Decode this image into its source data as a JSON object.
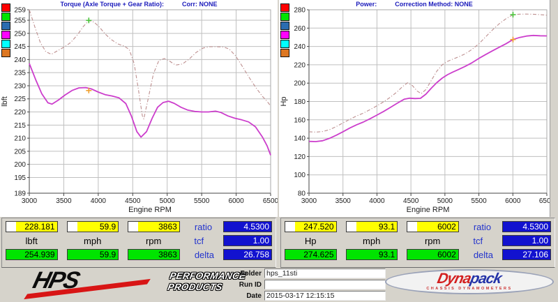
{
  "colors": {
    "window_bg": "#d6d3cb",
    "panel_bg": "#ffffff",
    "header_text": "#1a1abb",
    "cell_yellow": "#ffff00",
    "cell_green": "#00e400",
    "cell_blue": "#1212cf",
    "side_label_blue": "#2233cc",
    "solid_curve": "#cc3ecc",
    "dashed_curve": "#bd8f8f",
    "marker_green": "#4cc43c",
    "marker_orange": "#f0a030",
    "hps_red": "#d81515",
    "dynapack_red": "#d32020",
    "dynapack_blue": "#2433a8"
  },
  "chart_data": [
    {
      "type": "line",
      "title": "Torque (Axle Torque + Gear Ratio):",
      "corr_label": "Corr: NONE",
      "xlabel": "Engine RPM",
      "ylabel": "lbft",
      "xlim": [
        3000,
        6500
      ],
      "ylim": [
        189,
        259
      ],
      "x_ticks": [
        3000,
        3500,
        4000,
        4500,
        5000,
        5500,
        6000,
        6500
      ],
      "y_ticks": [
        259,
        255,
        250,
        245,
        240,
        235,
        230,
        225,
        220,
        215,
        210,
        205,
        200,
        195,
        189
      ],
      "grid": true,
      "legend_position": "top-left-outside",
      "legend_colors": [
        "#ff0000",
        "#00e400",
        "#2b6cb0",
        "#ff00ff",
        "#00ffff",
        "#dd7722"
      ],
      "series": [
        {
          "name": "torque-current-run",
          "color": "#cc3ecc",
          "line_style": "solid",
          "points": [
            [
              3000,
              238.5
            ],
            [
              3090,
              232.5
            ],
            [
              3180,
              227
            ],
            [
              3270,
              223.5
            ],
            [
              3330,
              223
            ],
            [
              3420,
              224.5
            ],
            [
              3520,
              226.5
            ],
            [
              3620,
              228.2
            ],
            [
              3720,
              229.2
            ],
            [
              3820,
              229.3
            ],
            [
              3900,
              228.8
            ],
            [
              4000,
              227.6
            ],
            [
              4100,
              226.6
            ],
            [
              4200,
              226.1
            ],
            [
              4300,
              225.4
            ],
            [
              4400,
              223.2
            ],
            [
              4480,
              218.5
            ],
            [
              4560,
              212.5
            ],
            [
              4620,
              210.4
            ],
            [
              4700,
              212.5
            ],
            [
              4780,
              217.5
            ],
            [
              4860,
              221.8
            ],
            [
              4940,
              223.6
            ],
            [
              5020,
              224.1
            ],
            [
              5100,
              223.3
            ],
            [
              5200,
              221.8
            ],
            [
              5300,
              220.7
            ],
            [
              5400,
              220.2
            ],
            [
              5500,
              220
            ],
            [
              5600,
              220
            ],
            [
              5700,
              220.3
            ],
            [
              5780,
              219.8
            ],
            [
              5880,
              218.5
            ],
            [
              5980,
              217.6
            ],
            [
              6080,
              217
            ],
            [
              6180,
              216.2
            ],
            [
              6280,
              214.3
            ],
            [
              6380,
              210.5
            ],
            [
              6450,
              207
            ],
            [
              6500,
              203.5
            ]
          ]
        },
        {
          "name": "torque-reference-run",
          "color": "#bd8f8f",
          "line_style": "dashdot",
          "points": [
            [
              3000,
              259
            ],
            [
              3080,
              252.5
            ],
            [
              3160,
              246.5
            ],
            [
              3240,
              243
            ],
            [
              3320,
              242
            ],
            [
              3420,
              243.5
            ],
            [
              3520,
              245
            ],
            [
              3600,
              246.5
            ],
            [
              3700,
              249.5
            ],
            [
              3780,
              252.5
            ],
            [
              3863,
              254.9
            ],
            [
              3940,
              254.3
            ],
            [
              4020,
              252.3
            ],
            [
              4100,
              249.8
            ],
            [
              4180,
              247.8
            ],
            [
              4280,
              246
            ],
            [
              4380,
              245.1
            ],
            [
              4450,
              243.8
            ],
            [
              4520,
              238.5
            ],
            [
              4580,
              229
            ],
            [
              4640,
              218.5
            ],
            [
              4660,
              217.3
            ],
            [
              4720,
              224.5
            ],
            [
              4800,
              234.5
            ],
            [
              4880,
              239.7
            ],
            [
              4960,
              240.4
            ],
            [
              5040,
              239.3
            ],
            [
              5120,
              237.9
            ],
            [
              5220,
              238.3
            ],
            [
              5320,
              240.2
            ],
            [
              5420,
              242.7
            ],
            [
              5520,
              244.4
            ],
            [
              5620,
              244.9
            ],
            [
              5720,
              244.9
            ],
            [
              5820,
              244.8
            ],
            [
              5900,
              244
            ],
            [
              5990,
              241.5
            ],
            [
              6080,
              237.8
            ],
            [
              6180,
              233.5
            ],
            [
              6280,
              229.5
            ],
            [
              6380,
              226
            ],
            [
              6450,
              224
            ],
            [
              6500,
              222.3
            ]
          ]
        }
      ],
      "cursor_markers": [
        {
          "x": 3863,
          "y": 228.181,
          "color": "#f0a030",
          "series": "torque-current-run"
        },
        {
          "x": 3863,
          "y": 254.939,
          "color": "#4cc43c",
          "series": "torque-reference-run"
        }
      ]
    },
    {
      "type": "line",
      "title": "Power:",
      "corr_label": "Correction Method: NONE",
      "xlabel": "Engine RPM",
      "ylabel": "Hp",
      "xlim": [
        3000,
        6500
      ],
      "ylim": [
        80,
        280
      ],
      "x_ticks": [
        3000,
        3500,
        4000,
        4500,
        5000,
        5500,
        6000,
        6500
      ],
      "y_ticks": [
        280,
        260,
        240,
        220,
        200,
        180,
        160,
        140,
        120,
        100,
        80
      ],
      "grid": true,
      "legend_position": "top-left-outside",
      "legend_colors": [
        "#ff0000",
        "#00e400",
        "#2b6cb0",
        "#ff00ff",
        "#00ffff",
        "#dd7722"
      ],
      "series": [
        {
          "name": "power-current-run",
          "color": "#cc3ecc",
          "line_style": "solid",
          "points": [
            [
              3000,
              136.5
            ],
            [
              3100,
              136.3
            ],
            [
              3200,
              137.2
            ],
            [
              3300,
              139.8
            ],
            [
              3400,
              143.2
            ],
            [
              3500,
              147
            ],
            [
              3600,
              151
            ],
            [
              3700,
              154.6
            ],
            [
              3800,
              157.6
            ],
            [
              3900,
              161.2
            ],
            [
              4000,
              165.2
            ],
            [
              4100,
              169.2
            ],
            [
              4200,
              173.6
            ],
            [
              4300,
              178.2
            ],
            [
              4400,
              182.4
            ],
            [
              4480,
              183.6
            ],
            [
              4560,
              183.2
            ],
            [
              4640,
              183.4
            ],
            [
              4720,
              188
            ],
            [
              4800,
              194.5
            ],
            [
              4880,
              200.5
            ],
            [
              4960,
              205.5
            ],
            [
              5040,
              209.3
            ],
            [
              5120,
              212.2
            ],
            [
              5200,
              214.8
            ],
            [
              5300,
              218.3
            ],
            [
              5400,
              222.3
            ],
            [
              5500,
              227
            ],
            [
              5600,
              231.2
            ],
            [
              5700,
              235.3
            ],
            [
              5800,
              239.2
            ],
            [
              5900,
              243
            ],
            [
              6002,
              247.5
            ],
            [
              6100,
              249.8
            ],
            [
              6200,
              251.3
            ],
            [
              6300,
              252
            ],
            [
              6400,
              251.6
            ],
            [
              6500,
              251.5
            ]
          ]
        },
        {
          "name": "power-reference-run",
          "color": "#bd8f8f",
          "line_style": "dashdot",
          "points": [
            [
              3000,
              147
            ],
            [
              3100,
              146.6
            ],
            [
              3200,
              147.2
            ],
            [
              3300,
              149.2
            ],
            [
              3400,
              152.6
            ],
            [
              3500,
              156.6
            ],
            [
              3600,
              160.6
            ],
            [
              3700,
              164.2
            ],
            [
              3800,
              167.3
            ],
            [
              3900,
              171.2
            ],
            [
              4000,
              175.3
            ],
            [
              4100,
              179.8
            ],
            [
              4200,
              184.8
            ],
            [
              4300,
              190.8
            ],
            [
              4380,
              196.5
            ],
            [
              4450,
              200.4
            ],
            [
              4520,
              197.5
            ],
            [
              4590,
              191.5
            ],
            [
              4650,
              188.6
            ],
            [
              4720,
              193
            ],
            [
              4800,
              203
            ],
            [
              4880,
              213
            ],
            [
              4960,
              220
            ],
            [
              5040,
              223.8
            ],
            [
              5120,
              226.2
            ],
            [
              5200,
              228.6
            ],
            [
              5300,
              232
            ],
            [
              5400,
              236.8
            ],
            [
              5500,
              243
            ],
            [
              5600,
              250.5
            ],
            [
              5700,
              258
            ],
            [
              5800,
              264.8
            ],
            [
              5900,
              270.3
            ],
            [
              6002,
              274.6
            ],
            [
              6100,
              275.2
            ],
            [
              6200,
              275.3
            ],
            [
              6300,
              275.1
            ],
            [
              6400,
              274.7
            ],
            [
              6500,
              274.1
            ]
          ]
        }
      ],
      "cursor_markers": [
        {
          "x": 6002,
          "y": 247.52,
          "color": "#f0a030",
          "series": "power-current-run"
        },
        {
          "x": 6002,
          "y": 274.625,
          "color": "#4cc43c",
          "series": "power-reference-run"
        }
      ]
    }
  ],
  "left_table": {
    "row1": [
      "228.181",
      "59.9",
      "3863"
    ],
    "units": [
      "lbft",
      "mph",
      "rpm"
    ],
    "row3": [
      "254.939",
      "59.9",
      "3863"
    ],
    "labels": [
      "ratio",
      "tcf",
      "delta"
    ],
    "values": [
      "4.5300",
      "1.00",
      "26.758"
    ]
  },
  "right_table": {
    "row1": [
      "247.520",
      "93.1",
      "6002"
    ],
    "units": [
      "Hp",
      "mph",
      "rpm"
    ],
    "row3": [
      "274.625",
      "93.1",
      "6002"
    ],
    "labels": [
      "ratio",
      "tcf",
      "delta"
    ],
    "values": [
      "4.5300",
      "1.00",
      "27.106"
    ]
  },
  "footer": {
    "hps": {
      "mark": "HPS",
      "line1": "PERFORMANCE",
      "line2": "PRODUCTS"
    },
    "fields": [
      {
        "label": "Folder",
        "value": "hps_11sti"
      },
      {
        "label": "Run ID",
        "value": ""
      },
      {
        "label": "Date",
        "value": "2015-03-17 12:15:15"
      }
    ],
    "dynapack": {
      "part1": "Dyna",
      "part2": "pack",
      "sub": "CHASSIS DYNAMOMETERS"
    }
  }
}
